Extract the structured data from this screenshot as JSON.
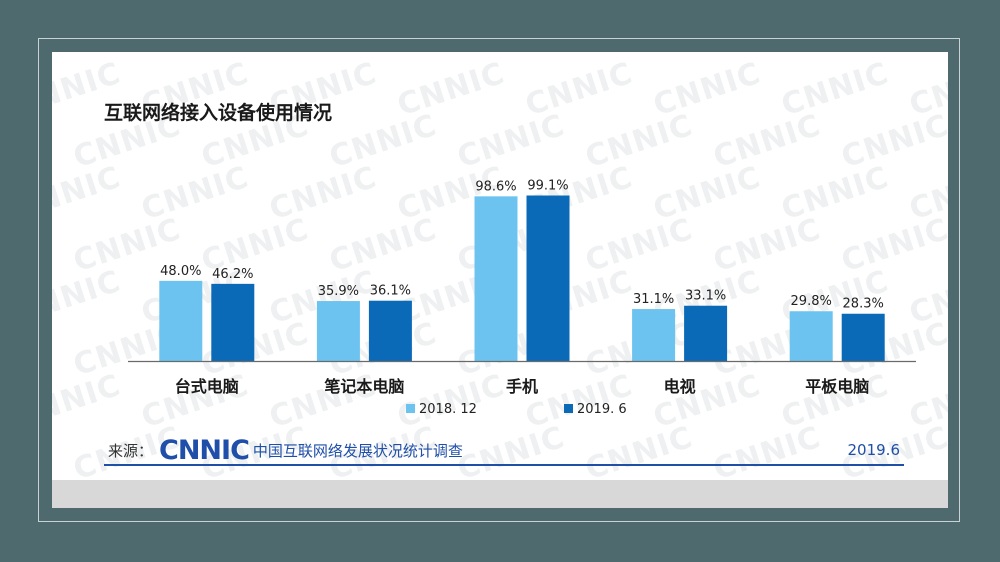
{
  "chart_data": {
    "type": "bar",
    "title": "互联网络接入设备使用情况",
    "categories": [
      "台式电脑",
      "笔记本电脑",
      "手机",
      "电视",
      "平板电脑"
    ],
    "series": [
      {
        "name": "2018. 12",
        "values": [
          48.0,
          35.9,
          98.6,
          31.1,
          29.8
        ],
        "labels": [
          "48.0%",
          "35.9%",
          "98.6%",
          "31.1%",
          "29.8%"
        ],
        "color": "#6cc3f0"
      },
      {
        "name": "2019. 6",
        "values": [
          46.2,
          36.1,
          99.1,
          33.1,
          28.3
        ],
        "labels": [
          "46.2%",
          "36.1%",
          "99.1%",
          "33.1%",
          "28.3%"
        ],
        "color": "#0a6ab8"
      }
    ],
    "ylim": [
      0,
      100
    ],
    "grid": false,
    "legend": "bottom-center"
  },
  "source": {
    "label": "来源：",
    "logo": "CNNIC",
    "organization": "中国互联网络发展状况统计调查",
    "date": "2019.6"
  },
  "watermark": "CNNIC",
  "colors": {
    "background": "#4e6a6e",
    "brand": "#1f4fa8",
    "series_2018": "#6cc3f0",
    "series_2019": "#0a6ab8"
  }
}
